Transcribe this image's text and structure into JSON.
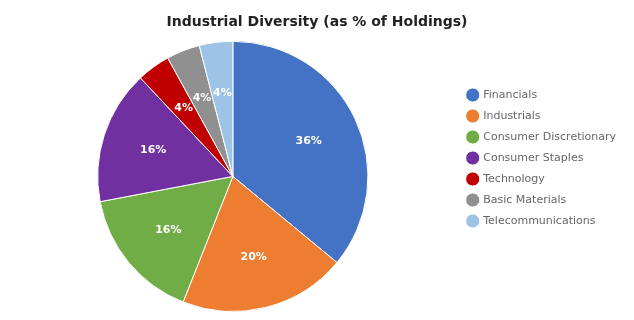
{
  "chart_data": {
    "type": "pie",
    "title": "Industrial Diversity (as % of Holdings)",
    "categories": [
      "Financials",
      "Industrials",
      "Consumer Discretionary",
      "Consumer Staples",
      "Technology",
      "Basic Materials",
      "Telecommunications"
    ],
    "values": [
      36,
      20,
      16,
      16,
      4,
      4,
      4
    ],
    "value_labels": [
      "36%",
      "20%",
      "16%",
      "16%",
      "4%",
      "4%",
      "4%"
    ],
    "colors": [
      "#4472C4",
      "#ED7D31",
      "#70AD47",
      "#7030A0",
      "#C00000",
      "#909090",
      "#9DC3E6"
    ],
    "data_labels": true,
    "legend": "right"
  }
}
